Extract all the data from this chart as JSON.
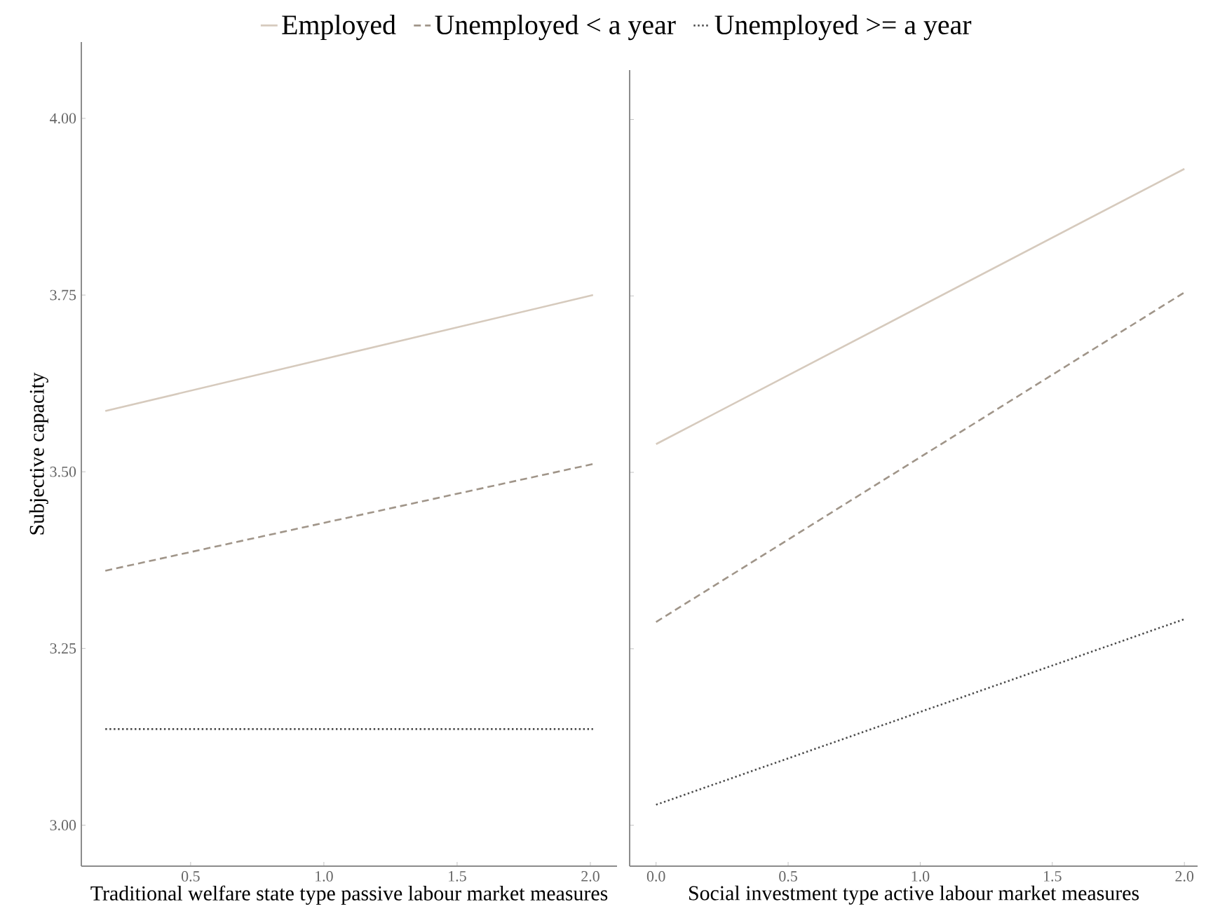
{
  "chart_data": [
    {
      "type": "line",
      "xlabel": "Traditional welfare state type passive labour market measures",
      "ylabel": "Subjective capacity",
      "xlim": [
        0.09,
        2.1
      ],
      "ylim": [
        2.942,
        4.108
      ],
      "xticks": [
        {
          "value": 0.5,
          "label": "0.5"
        },
        {
          "value": 1.0,
          "label": "1.0"
        },
        {
          "value": 1.5,
          "label": "1.5"
        },
        {
          "value": 2.0,
          "label": "2.0"
        }
      ],
      "yticks": [
        {
          "value": 3.0,
          "label": "3.00"
        },
        {
          "value": 3.25,
          "label": "3.25"
        },
        {
          "value": 3.5,
          "label": "3.50"
        },
        {
          "value": 3.75,
          "label": "3.75"
        },
        {
          "value": 4.0,
          "label": "4.00"
        }
      ],
      "legend": "top",
      "grid": false,
      "series": [
        {
          "name": "Employed",
          "color": "#d6cabd",
          "line_style": "solid",
          "x": [
            0.18,
            2.01
          ],
          "values": [
            3.586,
            3.75
          ]
        },
        {
          "name": "Unemployed < a year",
          "color": "#a09589",
          "line_style": "dashed",
          "x": [
            0.18,
            2.01
          ],
          "values": [
            3.36,
            3.511
          ]
        },
        {
          "name": "Unemployed >= a year",
          "color": "#4a4a4a",
          "line_style": "dotted",
          "x": [
            0.18,
            2.01
          ],
          "values": [
            3.136,
            3.136
          ]
        }
      ]
    },
    {
      "type": "line",
      "xlabel": "Social investment type active labour market measures",
      "xlim": [
        -0.1,
        2.05
      ],
      "ylim": [
        2.942,
        4.07
      ],
      "tick_labels": "x",
      "xticks": [
        {
          "value": 0.0,
          "label": "0.0"
        },
        {
          "value": 0.5,
          "label": "0.5"
        },
        {
          "value": 1.0,
          "label": "1.0"
        },
        {
          "value": 1.5,
          "label": "1.5"
        },
        {
          "value": 2.0,
          "label": "2.0"
        }
      ],
      "yticks": [
        3.0,
        3.25,
        3.5,
        3.75,
        4.0
      ],
      "grid": false,
      "series": [
        {
          "color": "#d6cabd",
          "line_style": "solid",
          "x": [
            0.0,
            2.0
          ],
          "values": [
            3.54,
            3.93
          ]
        },
        {
          "color": "#a09589",
          "line_style": "dashed",
          "x": [
            0.0,
            2.0
          ],
          "values": [
            3.288,
            3.755
          ]
        },
        {
          "color": "#4a4a4a",
          "line_style": "dotted",
          "x": [
            0.0,
            2.0
          ],
          "values": [
            3.029,
            3.292
          ]
        }
      ]
    }
  ]
}
